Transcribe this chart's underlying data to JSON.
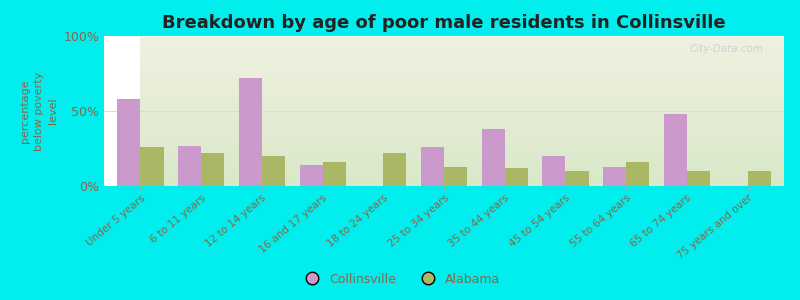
{
  "title": "Breakdown by age of poor male residents in Collinsville",
  "ylabel": "percentage\nbelow poverty\nlevel",
  "categories": [
    "Under 5 years",
    "6 to 11 years",
    "12 to 14 years",
    "16 and 17 years",
    "18 to 24 years",
    "25 to 34 years",
    "35 to 44 years",
    "45 to 54 years",
    "55 to 64 years",
    "65 to 74 years",
    "75 years and over"
  ],
  "collinsville": [
    58,
    27,
    72,
    14,
    0,
    26,
    38,
    20,
    13,
    48,
    0
  ],
  "alabama": [
    26,
    22,
    20,
    16,
    22,
    13,
    12,
    10,
    16,
    10,
    10
  ],
  "collinsville_color": "#cc99cc",
  "alabama_color": "#aab866",
  "background_color": "#00eeee",
  "ylim": [
    0,
    100
  ],
  "yticks": [
    0,
    50,
    100
  ],
  "ytick_labels": [
    "0%",
    "50%",
    "100%"
  ],
  "bar_width": 0.38,
  "title_fontsize": 13,
  "tick_label_color": "#886644",
  "axis_label_color": "#886644",
  "grid_color": "#ffffff",
  "hline_color": "#ffcccc",
  "watermark": "City-Data.com"
}
